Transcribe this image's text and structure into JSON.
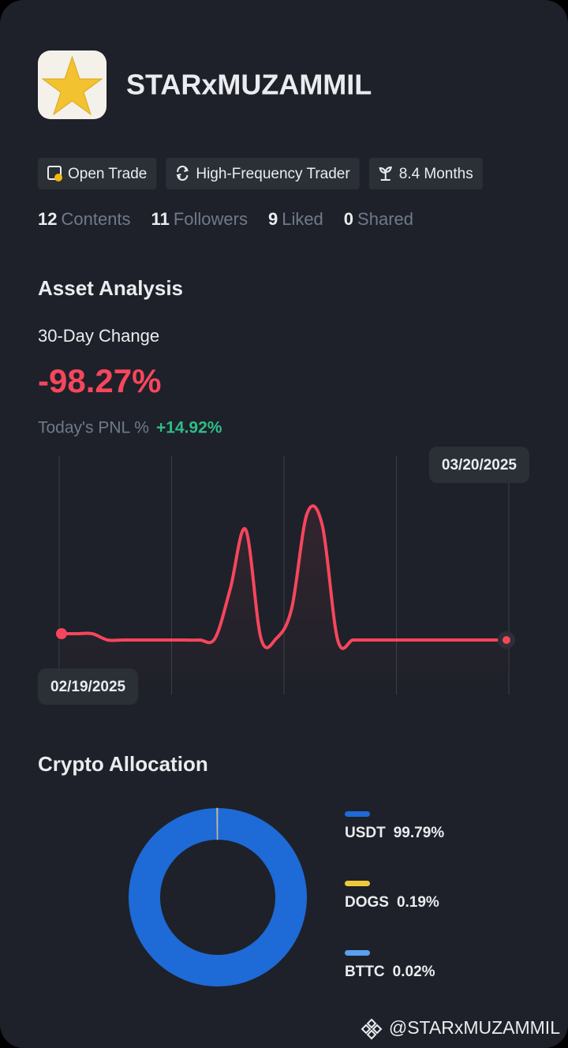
{
  "profile": {
    "name": "STARxMUZAMMIL",
    "tags": [
      "Open Trade",
      "High-Frequency Trader",
      "8.4 Months"
    ],
    "stats": [
      {
        "value": 12,
        "label": "Contents"
      },
      {
        "value": 11,
        "label": "Followers"
      },
      {
        "value": 9,
        "label": "Liked"
      },
      {
        "value": 0,
        "label": "Shared"
      }
    ]
  },
  "asset_analysis": {
    "title": "Asset Analysis",
    "change_label": "30-Day Change",
    "change_value": "-98.27%",
    "pnl_label": "Today's PNL %",
    "pnl_value": "+14.92%"
  },
  "chart_data": [
    {
      "type": "line",
      "color": "#f6465d",
      "categories": [
        "02/19/2025",
        null,
        null,
        null,
        null,
        null,
        null,
        null,
        null,
        null,
        null,
        null,
        null,
        null,
        null,
        null,
        null,
        null,
        null,
        null,
        null,
        null,
        null,
        null,
        null,
        null,
        null,
        null,
        null,
        "03/20/2025"
      ],
      "values": [
        8,
        8,
        8,
        0,
        0,
        0,
        0,
        0,
        0,
        0,
        2,
        65,
        140,
        2,
        2,
        40,
        160,
        145,
        0,
        0,
        0,
        0,
        0,
        0,
        0,
        0,
        0,
        0,
        0,
        0
      ]
    },
    {
      "type": "pie",
      "title": "Crypto Allocation",
      "categories": [
        "USDT",
        "DOGS",
        "BTTC"
      ],
      "values": [
        99.79,
        0.19,
        0.02
      ],
      "value_labels": [
        "99.79%",
        "0.19%",
        "0.02%"
      ],
      "colors": [
        "#1e6ad6",
        "#f0c93a",
        "#5aa0f0"
      ]
    }
  ],
  "watermark": "@STARxMUZAMMIL"
}
